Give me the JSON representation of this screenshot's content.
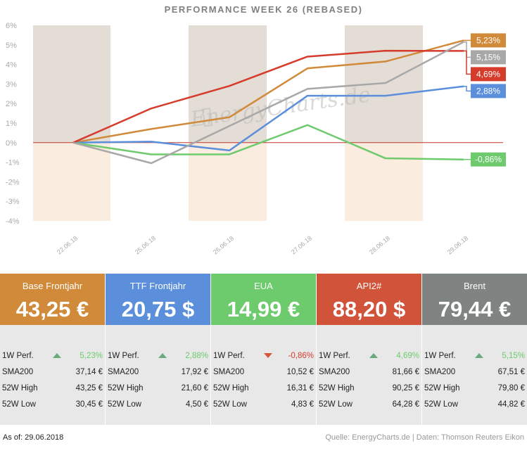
{
  "chart_data": {
    "type": "line",
    "title": "PERFORMANCE  WEEK 26 (REBASED)",
    "categories": [
      "22.06.18",
      "25.06.18",
      "26.06.18",
      "27.06.18",
      "28.06.18",
      "29.06.18"
    ],
    "y_ticks": [
      "6%",
      "5%",
      "4%",
      "3%",
      "2%",
      "1%",
      "0%",
      "-1%",
      "-2%",
      "-3%",
      "-4%"
    ],
    "ylim": [
      -4,
      6
    ],
    "grid": false,
    "watermark": "EnergyCharts.de",
    "series": [
      {
        "name": "Base Frontjahr",
        "color": "#d08a3a",
        "values": [
          0,
          0.7,
          1.3,
          3.8,
          4.15,
          5.23
        ],
        "end_label": "5,23%"
      },
      {
        "name": "TTF Frontjahr",
        "color": "#5b8fdc",
        "values": [
          0,
          0.05,
          -0.4,
          2.4,
          2.4,
          2.88
        ],
        "end_label": "2,88%"
      },
      {
        "name": "EUA",
        "color": "#6dcb6d",
        "values": [
          0,
          -0.6,
          -0.6,
          0.9,
          -0.8,
          -0.86
        ],
        "end_label": "-0,86%"
      },
      {
        "name": "API2#",
        "color": "#d63c2c",
        "values": [
          0,
          1.75,
          2.9,
          4.4,
          4.7,
          4.69
        ],
        "end_label": "4,69%"
      },
      {
        "name": "Brent",
        "color": "#a8a8a8",
        "values": [
          0,
          -1.05,
          0.85,
          2.75,
          3.05,
          5.15
        ],
        "end_label": "5,15%"
      }
    ]
  },
  "cards": [
    {
      "name": "Base Frontjahr",
      "price": "43,25 €",
      "color": "#d08a3a",
      "perf_label": "1W Perf.",
      "perf_value": "5,23%",
      "perf_trend": "up",
      "perf_color": "#6dcb6d",
      "sma_label": "SMA200",
      "sma_value": "37,14 €",
      "high_label": "52W High",
      "high_value": "43,25 €",
      "low_label": "52W Low",
      "low_value": "30,45 €"
    },
    {
      "name": "TTF Frontjahr",
      "price": "20,75 $",
      "color": "#5b8fdc",
      "perf_label": "1W Perf.",
      "perf_value": "2,88%",
      "perf_trend": "up",
      "perf_color": "#6dcb6d",
      "sma_label": "SMA200",
      "sma_value": "17,92 €",
      "high_label": "52W High",
      "high_value": "21,60 €",
      "low_label": "52W Low",
      "low_value": "4,50 €"
    },
    {
      "name": "EUA",
      "price": "14,99 €",
      "color": "#6dcb6d",
      "perf_label": "1W Perf.",
      "perf_value": "-0,86%",
      "perf_trend": "down",
      "perf_color": "#d63c2c",
      "sma_label": "SMA200",
      "sma_value": "10,52 €",
      "high_label": "52W High",
      "high_value": "16,31 €",
      "low_label": "52W Low",
      "low_value": "4,83 €"
    },
    {
      "name": "API2#",
      "price": "88,20 $",
      "color": "#d0533a",
      "perf_label": "1W Perf.",
      "perf_value": "4,69%",
      "perf_trend": "up",
      "perf_color": "#6dcb6d",
      "sma_label": "SMA200",
      "sma_value": "81,66 €",
      "high_label": "52W High",
      "high_value": "90,25 €",
      "low_label": "52W Low",
      "low_value": "64,28 €"
    },
    {
      "name": "Brent",
      "price": "79,44 €",
      "color": "#7f8483",
      "perf_label": "1W Perf.",
      "perf_value": "5,15%",
      "perf_trend": "up",
      "perf_color": "#6dcb6d",
      "sma_label": "SMA200",
      "sma_value": "67,51 €",
      "high_label": "52W High",
      "high_value": "79,80 €",
      "low_label": "52W Low",
      "low_value": "44,82 €"
    }
  ],
  "footer": {
    "as_of": "As of: 29.06.2018",
    "source": "Quelle: EnergyCharts.de | Daten: Thomson Reuters Eikon"
  }
}
